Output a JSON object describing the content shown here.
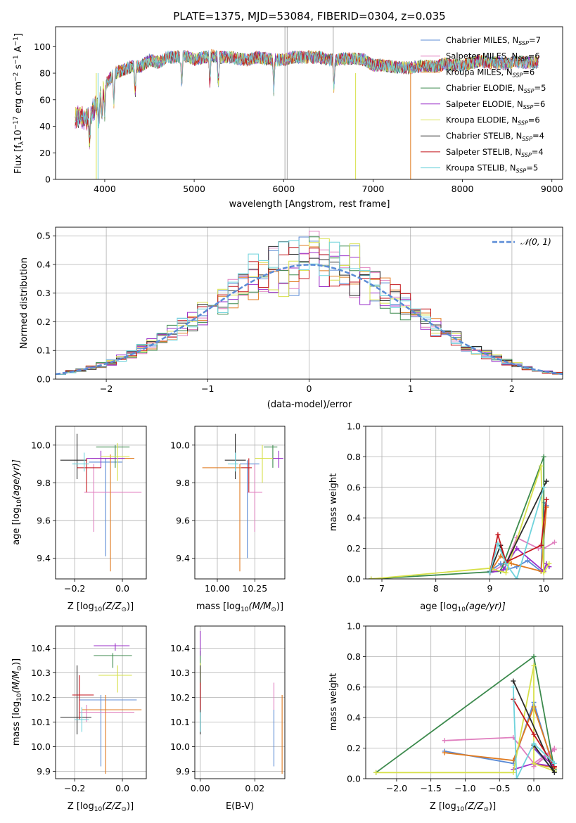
{
  "figure_title": "PLATE=1375, MJD=53084, FIBERID=0304, z=0.035",
  "legend_models": [
    {
      "prefix": "Chabrier MILES, N",
      "n": "7",
      "color": "#5b8bd6"
    },
    {
      "prefix": "Salpeter MILES, N",
      "n": "6",
      "color": "#e07fbf"
    },
    {
      "prefix": "Kroupa MILES, N",
      "n": "6",
      "color": "#e07b20"
    },
    {
      "prefix": "Chabrier ELODIE, N",
      "n": "5",
      "color": "#3c8a4d"
    },
    {
      "prefix": "Salpeter ELODIE, N",
      "n": "6",
      "color": "#9a2fc9"
    },
    {
      "prefix": "Kroupa ELODIE, N",
      "n": "6",
      "color": "#d7e04a"
    },
    {
      "prefix": "Chabrier STELIB, N",
      "n": "4",
      "color": "#2b2b2b"
    },
    {
      "prefix": "Salpeter STELIB, N",
      "n": "4",
      "color": "#c4161c"
    },
    {
      "prefix": "Kroupa STELIB, N",
      "n": "5",
      "color": "#6fd3dc"
    }
  ],
  "legend_sub": "SSP",
  "legend_normal": "𝒩(0, 1)",
  "chart_data": [
    {
      "id": "spectrum",
      "type": "line",
      "xlabel": "wavelength [Angstrom, rest frame]",
      "ylabel": "Flux [f",
      "ylabel_sub": "λ",
      "ylabel_rest": "10",
      "ylabel_exp1": "−17",
      "ylabel_mid": " erg cm",
      "ylabel_exp2": "−2",
      "ylabel_mid2": " s",
      "ylabel_exp3": "−1",
      "ylabel_end": " A",
      "ylabel_exp4": "−1",
      "ylabel_close": "]",
      "xlim": [
        3450,
        9120
      ],
      "ylim": [
        0,
        115
      ],
      "xticks": [
        "4000",
        "5000",
        "6000",
        "7000",
        "8000",
        "9000"
      ],
      "yticks": [
        "0",
        "20",
        "40",
        "60",
        "80",
        "100"
      ],
      "x": [
        3700,
        3800,
        3900,
        4000,
        4100,
        4200,
        4300,
        4400,
        4500,
        4600,
        4700,
        4800,
        4900,
        5000,
        5100,
        5200,
        5300,
        5400,
        5500,
        5600,
        5700,
        5800,
        5900,
        6000,
        6100,
        6200,
        6300,
        6400,
        6500,
        6600,
        6700,
        6800,
        6900,
        7000,
        7100,
        7200,
        7300,
        7400,
        7500,
        7600,
        7700,
        7800,
        7900,
        8000,
        8100,
        8200,
        8300,
        8400,
        8500,
        8600,
        8700,
        8800
      ],
      "y": [
        48,
        45,
        55,
        70,
        80,
        82,
        85,
        85,
        90,
        88,
        92,
        92,
        93,
        90,
        92,
        93,
        92,
        92,
        91,
        90,
        92,
        91,
        90,
        90,
        92,
        92,
        92,
        92,
        90,
        90,
        91,
        91,
        90,
        86,
        86,
        85,
        84,
        84,
        85,
        86,
        85,
        87,
        86,
        86,
        88,
        89,
        88,
        88,
        87,
        89,
        88,
        88
      ]
    },
    {
      "id": "residuals",
      "type": "bar",
      "xlabel": "(data-model)/error",
      "ylabel": "Normed distribution",
      "xlim": [
        -2.5,
        2.5
      ],
      "ylim": [
        0,
        0.53
      ],
      "xticks": [
        "−2",
        "−1",
        "0",
        "1",
        "2"
      ],
      "yticks": [
        "0.0",
        "0.1",
        "0.2",
        "0.3",
        "0.4",
        "0.5"
      ],
      "bin_edges_start": -2.5,
      "bin_width": 0.1,
      "normal_curve": {
        "mean": 0,
        "sigma": 1
      }
    },
    {
      "id": "age_vs_Z",
      "type": "scatter",
      "xlabel": "Z [log",
      "xlabel_sub": "10",
      "xlabel_rest": "(Z/Z",
      "xlabel_sun": "⊙",
      "xlabel_end": ")]",
      "ylabel": "age  [log",
      "ylabel_sub": "10",
      "ylabel_rest": "(age/yr)]",
      "xlim": [
        -0.28,
        0.1
      ],
      "ylim": [
        9.29,
        10.1
      ],
      "xticks": [
        "−0.2",
        "0.0"
      ],
      "yticks": [
        "9.4",
        "9.6",
        "9.8",
        "10.0"
      ],
      "points": [
        {
          "x": -0.07,
          "y": 9.91,
          "xerr": [
            0.07,
            0.07
          ],
          "yerr": [
            0.5,
            0.02
          ],
          "series": 0
        },
        {
          "x": -0.12,
          "y": 9.75,
          "xerr": [
            0.04,
            0.2
          ],
          "yerr": [
            0.21,
            0.15
          ],
          "series": 1
        },
        {
          "x": -0.05,
          "y": 9.93,
          "xerr": [
            0.08,
            0.1
          ],
          "yerr": [
            0.6,
            0.02
          ],
          "series": 2
        },
        {
          "x": -0.03,
          "y": 9.99,
          "xerr": [
            0.08,
            0.06
          ],
          "yerr": [
            0.11,
            0.01
          ],
          "series": 3
        },
        {
          "x": -0.09,
          "y": 9.93,
          "xerr": [
            0.06,
            0.1
          ],
          "yerr": [
            0.05,
            0.04
          ],
          "series": 4
        },
        {
          "x": -0.02,
          "y": 9.94,
          "xerr": [
            0.07,
            0.05
          ],
          "yerr": [
            0.13,
            0.07
          ],
          "series": 5
        },
        {
          "x": -0.19,
          "y": 9.92,
          "xerr": [
            0.07,
            0.04
          ],
          "yerr": [
            0.1,
            0.14
          ],
          "series": 6
        },
        {
          "x": -0.15,
          "y": 9.88,
          "xerr": [
            0.04,
            0.06
          ],
          "yerr": [
            0.13,
            0.05
          ],
          "series": 7
        },
        {
          "x": -0.16,
          "y": 9.9,
          "xerr": [
            0.05,
            0.02
          ],
          "yerr": [
            0.04,
            0.06
          ],
          "series": 8
        }
      ]
    },
    {
      "id": "age_vs_mass",
      "type": "scatter",
      "xlabel": "mass [log",
      "xlabel_sub": "10",
      "xlabel_rest": "(M/M",
      "xlabel_sun": "⊙",
      "xlabel_end": ")]",
      "xlim": [
        9.85,
        10.45
      ],
      "ylim": [
        9.29,
        10.1
      ],
      "xticks": [
        "10.00",
        "10.25"
      ],
      "yticks": [
        "9.4",
        "9.6",
        "9.8",
        "10.0"
      ],
      "points": [
        {
          "x": 10.2,
          "y": 9.9,
          "xerr": [
            0.05,
            0.08
          ],
          "yerr": [
            0.5,
            0.02
          ],
          "series": 0
        },
        {
          "x": 10.25,
          "y": 9.75,
          "xerr": [
            0.05,
            0.05
          ],
          "yerr": [
            0.21,
            0.15
          ],
          "series": 1
        },
        {
          "x": 10.15,
          "y": 9.88,
          "xerr": [
            0.25,
            0.05
          ],
          "yerr": [
            0.55,
            0.02
          ],
          "series": 2
        },
        {
          "x": 10.37,
          "y": 9.99,
          "xerr": [
            0.06,
            0.03
          ],
          "yerr": [
            0.11,
            0.01
          ],
          "series": 3
        },
        {
          "x": 10.41,
          "y": 9.93,
          "xerr": [
            0.05,
            0.03
          ],
          "yerr": [
            0.05,
            0.04
          ],
          "series": 4
        },
        {
          "x": 10.3,
          "y": 9.93,
          "xerr": [
            0.05,
            0.07
          ],
          "yerr": [
            0.13,
            0.07
          ],
          "series": 5
        },
        {
          "x": 10.12,
          "y": 9.92,
          "xerr": [
            0.07,
            0.07
          ],
          "yerr": [
            0.1,
            0.14
          ],
          "series": 6
        },
        {
          "x": 10.21,
          "y": 9.88,
          "xerr": [
            0.05,
            0.02
          ],
          "yerr": [
            0.13,
            0.05
          ],
          "series": 7
        },
        {
          "x": 10.12,
          "y": 9.9,
          "xerr": [
            0.05,
            0.02
          ],
          "yerr": [
            0.04,
            0.06
          ],
          "series": 8
        }
      ]
    },
    {
      "id": "mass_weight_vs_age",
      "type": "line",
      "xlabel": "age  [log",
      "xlabel_sub": "10",
      "xlabel_rest": "(age/yr)]",
      "ylabel": "mass weight",
      "xlim": [
        6.7,
        10.35
      ],
      "ylim": [
        0,
        1
      ],
      "xticks": [
        "7",
        "8",
        "9",
        "10"
      ],
      "yticks": [
        "0.0",
        "0.2",
        "0.4",
        "0.6",
        "0.8",
        "1.0"
      ],
      "series": [
        {
          "x": [
            9.0,
            9.2,
            9.3,
            9.5,
            9.7,
            9.95,
            10.0,
            10.05
          ],
          "y": [
            0.05,
            0.1,
            0.06,
            0.08,
            0.12,
            0.05,
            0.5,
            0.48
          ]
        },
        {
          "x": [
            9.0,
            9.3,
            9.5,
            9.9,
            10.0,
            10.2
          ],
          "y": [
            0.04,
            0.1,
            0.27,
            0.2,
            0.2,
            0.24
          ]
        },
        {
          "x": [
            9.0,
            9.2,
            9.4,
            9.95,
            10.05
          ],
          "y": [
            0.04,
            0.15,
            0.1,
            0.05,
            0.47
          ]
        },
        {
          "x": [
            6.8,
            9.2,
            10.0,
            10.0
          ],
          "y": [
            0.0,
            0.05,
            0.8,
            0.06
          ]
        },
        {
          "x": [
            9.0,
            9.25,
            9.5,
            10.0,
            10.05,
            10.1
          ],
          "y": [
            0.04,
            0.06,
            0.2,
            0.05,
            0.1,
            0.08
          ]
        },
        {
          "x": [
            6.8,
            9.0,
            9.3,
            9.95,
            10.0,
            10.1
          ],
          "y": [
            0.0,
            0.07,
            0.04,
            0.74,
            0.04,
            0.1
          ]
        },
        {
          "x": [
            9.0,
            9.2,
            9.3,
            10.05
          ],
          "y": [
            0.04,
            0.22,
            0.1,
            0.64
          ]
        },
        {
          "x": [
            9.0,
            9.15,
            9.3,
            9.95,
            10.05
          ],
          "y": [
            0.04,
            0.29,
            0.11,
            0.22,
            0.52
          ]
        },
        {
          "x": [
            9.0,
            9.15,
            9.3,
            9.5,
            10.0
          ],
          "y": [
            0.04,
            0.23,
            0.1,
            0.0,
            0.6
          ]
        }
      ]
    },
    {
      "id": "mass_vs_Z",
      "type": "scatter",
      "xlabel": "Z [log",
      "xlabel_sub": "10",
      "xlabel_rest": "(Z/Z",
      "xlabel_sun": "⊙",
      "xlabel_end": ")]",
      "ylabel": "mass [log",
      "ylabel_sub": "10",
      "ylabel_rest": "(M/M",
      "ylabel_sun": "⊙",
      "ylabel_end": ")]",
      "xlim": [
        -0.28,
        0.1
      ],
      "ylim": [
        9.87,
        10.49
      ],
      "xticks": [
        "−0.2",
        "0.0"
      ],
      "yticks": [
        "9.9",
        "10.0",
        "10.1",
        "10.2",
        "10.3",
        "10.4"
      ],
      "points": [
        {
          "x": -0.09,
          "y": 10.19,
          "xerr": [
            0.09,
            0.15
          ],
          "yerr": [
            0.27,
            0.02
          ],
          "series": 0
        },
        {
          "x": -0.15,
          "y": 10.14,
          "xerr": [
            0.03,
            0.2
          ],
          "yerr": [
            0.04,
            0.03
          ],
          "series": 1
        },
        {
          "x": -0.07,
          "y": 10.15,
          "xerr": [
            0.1,
            0.15
          ],
          "yerr": [
            0.26,
            0.06
          ],
          "series": 2
        },
        {
          "x": -0.04,
          "y": 10.37,
          "xerr": [
            0.08,
            0.08
          ],
          "yerr": [
            0.05,
            0.01
          ],
          "series": 3
        },
        {
          "x": -0.03,
          "y": 10.41,
          "xerr": [
            0.09,
            0.06
          ],
          "yerr": [
            0.02,
            0.01
          ],
          "series": 4
        },
        {
          "x": -0.02,
          "y": 10.29,
          "xerr": [
            0.08,
            0.06
          ],
          "yerr": [
            0.07,
            0.04
          ],
          "series": 5
        },
        {
          "x": -0.19,
          "y": 10.12,
          "xerr": [
            0.07,
            0.06
          ],
          "yerr": [
            0.07,
            0.21
          ],
          "series": 6
        },
        {
          "x": -0.18,
          "y": 10.21,
          "xerr": [
            0.03,
            0.06
          ],
          "yerr": [
            0.1,
            0.08
          ],
          "series": 7
        },
        {
          "x": -0.17,
          "y": 10.11,
          "xerr": [
            0.03,
            0.03
          ],
          "yerr": [
            0.05,
            0.05
          ],
          "series": 8
        }
      ]
    },
    {
      "id": "mass_vs_EBV",
      "type": "scatter",
      "xlabel": "E(B-V)",
      "xlim": [
        -0.002,
        0.031
      ],
      "ylim": [
        9.87,
        10.49
      ],
      "xticks": [
        "0.00",
        "0.02"
      ],
      "yticks": [
        "9.9",
        "10.0",
        "10.1",
        "10.2",
        "10.3",
        "10.4"
      ],
      "points": [
        {
          "x": 0.027,
          "y": 10.15,
          "yerr": [
            0.23,
            0.0
          ],
          "series": 0
        },
        {
          "x": 0.027,
          "y": 10.22,
          "yerr": [
            0.07,
            0.04
          ],
          "series": 1
        },
        {
          "x": 0.03,
          "y": 10.1,
          "yerr": [
            0.21,
            0.11
          ],
          "series": 2
        },
        {
          "x": 0.0,
          "y": 10.37,
          "yerr": [
            0.04,
            0.02
          ],
          "series": 3
        },
        {
          "x": 0.0,
          "y": 10.42,
          "yerr": [
            0.05,
            0.05
          ],
          "series": 4
        },
        {
          "x": 0.0,
          "y": 10.31,
          "yerr": [
            0.06,
            0.03
          ],
          "series": 5
        },
        {
          "x": 0.0,
          "y": 10.15,
          "yerr": [
            0.1,
            0.18
          ],
          "series": 6
        },
        {
          "x": 0.0,
          "y": 10.21,
          "yerr": [
            0.06,
            0.05
          ],
          "series": 7
        },
        {
          "x": 0.0,
          "y": 10.1,
          "yerr": [
            0.04,
            0.04
          ],
          "series": 8
        }
      ]
    },
    {
      "id": "mass_weight_vs_Z",
      "type": "line",
      "xlabel": "Z [log",
      "xlabel_sub": "10",
      "xlabel_rest": "(Z/Z",
      "xlabel_sun": "⊙",
      "xlabel_end": ")]",
      "ylabel": "mass weight",
      "xlim": [
        -2.45,
        0.42
      ],
      "ylim": [
        0,
        1
      ],
      "xticks": [
        "−2.0",
        "−1.5",
        "−1.0",
        "−0.5",
        "0.0"
      ],
      "yticks": [
        "0.0",
        "0.2",
        "0.4",
        "0.6",
        "0.8",
        "1.0"
      ],
      "series": [
        {
          "x": [
            -1.3,
            -0.3,
            0.0,
            0.3,
            0.0,
            0.3
          ],
          "y": [
            0.18,
            0.1,
            0.5,
            0.05,
            0.2,
            0.05
          ]
        },
        {
          "x": [
            -1.3,
            -0.3,
            0.0,
            0.3,
            0.0,
            0.3
          ],
          "y": [
            0.25,
            0.27,
            0.1,
            0.2,
            0.08,
            0.19
          ]
        },
        {
          "x": [
            -1.3,
            -0.3,
            0.0,
            0.3,
            0.0
          ],
          "y": [
            0.17,
            0.12,
            0.47,
            0.07,
            0.1
          ]
        },
        {
          "x": [
            -2.3,
            0.0,
            0.3
          ],
          "y": [
            0.04,
            0.8,
            0.06
          ]
        },
        {
          "x": [
            -0.3,
            0.0,
            0.3,
            0.0
          ],
          "y": [
            0.06,
            0.1,
            0.08,
            0.2
          ]
        },
        {
          "x": [
            -2.3,
            -0.3,
            0.0,
            0.0,
            0.3
          ],
          "y": [
            0.04,
            0.04,
            0.74,
            0.1,
            0.05
          ]
        },
        {
          "x": [
            -0.3,
            0.3,
            0.0
          ],
          "y": [
            0.64,
            0.04,
            0.22
          ]
        },
        {
          "x": [
            -0.3,
            0.0,
            0.3
          ],
          "y": [
            0.52,
            0.29,
            0.08
          ]
        },
        {
          "x": [
            -0.3,
            -0.25,
            0.0,
            0.3
          ],
          "y": [
            0.6,
            0.0,
            0.23,
            0.1
          ]
        }
      ]
    }
  ]
}
